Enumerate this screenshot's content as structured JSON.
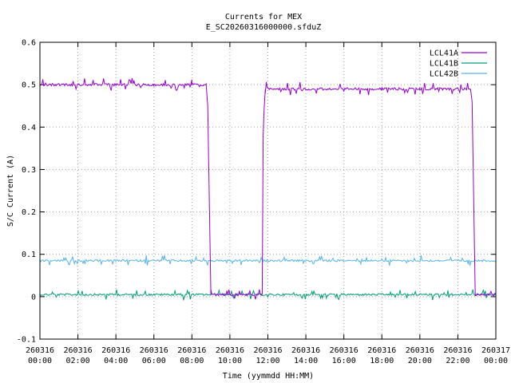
{
  "chart_data": {
    "type": "line",
    "title": "Currents for MEX",
    "subtitle": "E_SC20260316000000.sfduZ",
    "xlabel": "Time (yymmdd HH:MM)",
    "ylabel": "S/C Current (A)",
    "xlim": [
      "260316 00:00",
      "260317 00:00"
    ],
    "ylim": [
      -0.1,
      0.6
    ],
    "yticks": [
      -0.1,
      0,
      0.1,
      0.2,
      0.3,
      0.4,
      0.5,
      0.6
    ],
    "ytick_labels": [
      "-0.1",
      "0",
      "0.1",
      "0.2",
      "0.3",
      "0.4",
      "0.5",
      "0.6"
    ],
    "xticks": [
      {
        "date": "260316",
        "time": "00:00"
      },
      {
        "date": "260316",
        "time": "02:00"
      },
      {
        "date": "260316",
        "time": "04:00"
      },
      {
        "date": "260316",
        "time": "06:00"
      },
      {
        "date": "260316",
        "time": "08:00"
      },
      {
        "date": "260316",
        "time": "10:00"
      },
      {
        "date": "260316",
        "time": "12:00"
      },
      {
        "date": "260316",
        "time": "14:00"
      },
      {
        "date": "260316",
        "time": "16:00"
      },
      {
        "date": "260316",
        "time": "18:00"
      },
      {
        "date": "260316",
        "time": "20:00"
      },
      {
        "date": "260316",
        "time": "22:00"
      },
      {
        "date": "260317",
        "time": "00:00"
      }
    ],
    "grid": true,
    "legend_position": "top-right",
    "series": [
      {
        "name": "LCL41A",
        "color": "#9400d3",
        "points": [
          [
            "260316 00:00",
            0.5
          ],
          [
            "260316 02:00",
            0.5
          ],
          [
            "260316 04:00",
            0.5
          ],
          [
            "260316 06:00",
            0.5
          ],
          [
            "260316 08:00",
            0.5
          ],
          [
            "260316 08:45",
            0.5
          ],
          [
            "260316 08:48",
            0.47
          ],
          [
            "260316 08:50",
            0.45
          ],
          [
            "260316 09:00",
            0.005
          ],
          [
            "260316 10:00",
            0.005
          ],
          [
            "260316 11:00",
            0.005
          ],
          [
            "260316 11:42",
            0.005
          ],
          [
            "260316 11:45",
            0.38
          ],
          [
            "260316 11:48",
            0.44
          ],
          [
            "260316 11:52",
            0.49
          ],
          [
            "260316 14:00",
            0.49
          ],
          [
            "260316 16:00",
            0.49
          ],
          [
            "260316 18:00",
            0.49
          ],
          [
            "260316 20:00",
            0.49
          ],
          [
            "260316 22:00",
            0.49
          ],
          [
            "260316 22:40",
            0.49
          ],
          [
            "260316 22:45",
            0.46
          ],
          [
            "260316 22:55",
            0.005
          ],
          [
            "260317 00:00",
            0.005
          ]
        ]
      },
      {
        "name": "LCL41B",
        "color": "#009e73",
        "points": [
          [
            "260316 00:00",
            0.005
          ],
          [
            "260317 00:00",
            0.005
          ]
        ]
      },
      {
        "name": "LCL42B",
        "color": "#56b4e9",
        "points": [
          [
            "260316 00:00",
            0.085
          ],
          [
            "260317 00:00",
            0.085
          ]
        ]
      }
    ]
  }
}
